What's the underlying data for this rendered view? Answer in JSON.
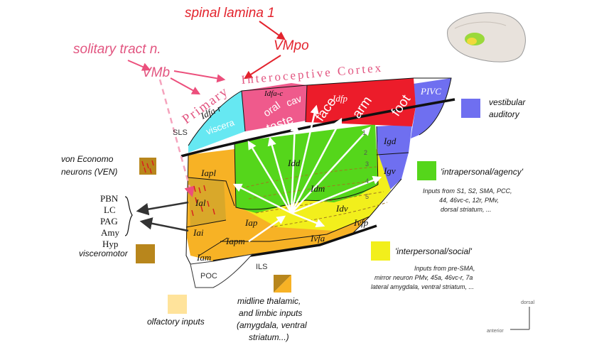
{
  "top_labels": {
    "spinal_lamina": "spinal lamina 1",
    "vmpo": "VMpo",
    "solitary": "solitary tract n.",
    "vmb": "VMb",
    "primary": "Primary",
    "interoceptive_cortex": "Interoceptive Cortex"
  },
  "regions": {
    "idfa_r": "Idfa-r",
    "idfa_c": "Idfa-c",
    "idfp": "Idfp",
    "pivc": "PIVC",
    "igd": "Igd",
    "igv": "Igv",
    "idd": "Idd",
    "idm": "Idm",
    "idv": "Idv",
    "iapl": "Iapl",
    "ial": "Ial",
    "iai": "Iai",
    "iam": "Iam",
    "iap": "Iap",
    "iapm": "Iapm",
    "ivfa": "Ivfa",
    "ivfp": "Ivfp",
    "poc": "POC",
    "sls": "SLS",
    "ils": "ILS"
  },
  "body_map": {
    "viscera": "viscera",
    "cav": "cav",
    "oral": "oral",
    "taste": "taste",
    "face": "face",
    "arm": "arm",
    "foot": "foot"
  },
  "layer_numbers": [
    "1",
    "2",
    "3",
    "4",
    "5"
  ],
  "left_panel": {
    "von_economo": "von Economo",
    "ven": "neurons (VEN)",
    "outputs": [
      "PBN",
      "LC",
      "PAG",
      "Amy",
      "Hyp"
    ],
    "visceromotor": "visceromotor"
  },
  "bottom_legend": {
    "olfactory": "olfactory inputs",
    "midline_line1": "midline thalamic,",
    "midline_line2": "and limbic inputs",
    "midline_line3": "(amygdala, ventral",
    "midline_line4": "striatum...)"
  },
  "right_legend": {
    "vestibular1": "vestibular",
    "vestibular2": "auditory",
    "intrapersonal": "'intrapersonal/agency'",
    "intra_inputs": [
      "Inputs from S1, S2, SMA, PCC,",
      "44, 46vc-c, 12r, PMv,",
      "dorsal striatum, ..."
    ],
    "interpersonal": "'interpersonal/social'",
    "inter_inputs": [
      "Inputs from pre-SMA,",
      "mirror neuron PMv, 45a, 46vc-r, 7a",
      "lateral amygdala, ventral striatum, ..."
    ]
  },
  "orientation": {
    "dorsal": "dorsal",
    "anterior": "anterior"
  },
  "colors": {
    "cyan": "#66e8f2",
    "pink": "#ef5a8c",
    "red": "#ec1c2a",
    "blue": "#6f6ff0",
    "green": "#55d61b",
    "orange": "#f7b225",
    "yellow": "#f2ef1c",
    "brown": "#b8861c",
    "cream": "#ffe39b",
    "label_pink": "#e25580",
    "label_red": "#e3232d"
  }
}
